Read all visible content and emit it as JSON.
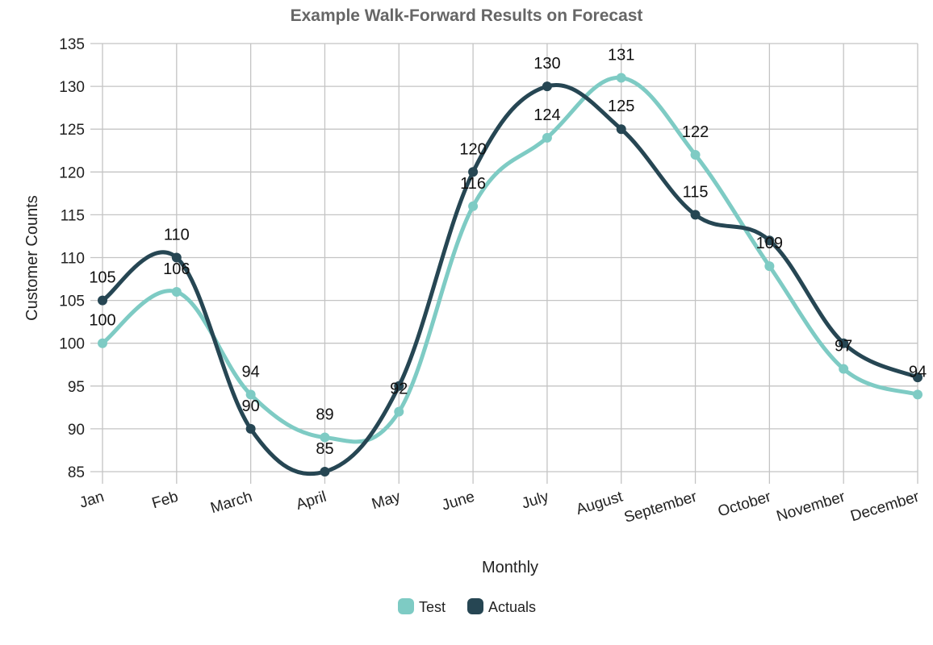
{
  "chart_data": {
    "type": "line",
    "title": "Example Walk-Forward Results on Forecast",
    "xlabel": "Monthly",
    "ylabel": "Customer Counts",
    "categories": [
      "Jan",
      "Feb",
      "March",
      "April",
      "May",
      "June",
      "July",
      "August",
      "September",
      "October",
      "November",
      "December"
    ],
    "ylim": [
      85,
      135
    ],
    "yticks": [
      85,
      90,
      95,
      100,
      105,
      110,
      115,
      120,
      125,
      130,
      135
    ],
    "grid": true,
    "legend_position": "bottom",
    "series": [
      {
        "name": "Test",
        "color": "#7ecbc4",
        "values": [
          100,
          106,
          94,
          89,
          92,
          116,
          124,
          131,
          122,
          109,
          97,
          94
        ],
        "labels": [
          "100",
          "106",
          "94",
          "89",
          "92",
          "116",
          "124",
          "131",
          "122",
          "109",
          "97",
          "94"
        ]
      },
      {
        "name": "Actuals",
        "color": "#264653",
        "values": [
          105,
          110,
          90,
          85,
          95,
          120,
          130,
          125,
          115,
          112,
          100,
          96
        ],
        "labels": [
          "105",
          "110",
          "90",
          "85",
          "",
          "120",
          "130",
          "125",
          "115",
          "",
          "",
          ""
        ]
      }
    ]
  }
}
